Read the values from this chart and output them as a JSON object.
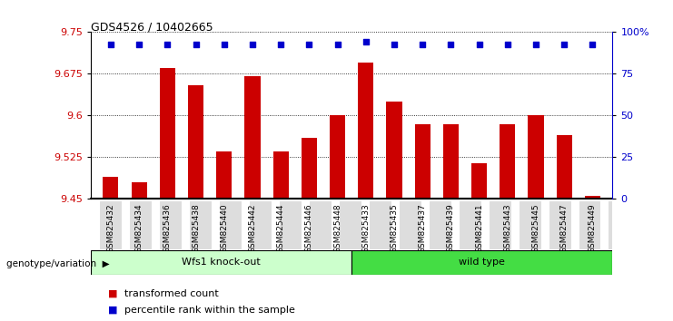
{
  "title": "GDS4526 / 10402665",
  "samples": [
    "GSM825432",
    "GSM825434",
    "GSM825436",
    "GSM825438",
    "GSM825440",
    "GSM825442",
    "GSM825444",
    "GSM825446",
    "GSM825448",
    "GSM825433",
    "GSM825435",
    "GSM825437",
    "GSM825439",
    "GSM825441",
    "GSM825443",
    "GSM825445",
    "GSM825447",
    "GSM825449"
  ],
  "red_values": [
    9.49,
    9.48,
    9.685,
    9.655,
    9.535,
    9.67,
    9.535,
    9.56,
    9.6,
    9.695,
    9.625,
    9.585,
    9.585,
    9.515,
    9.585,
    9.6,
    9.565,
    9.455
  ],
  "blue_values": [
    9.728,
    9.728,
    9.728,
    9.728,
    9.728,
    9.728,
    9.728,
    9.728,
    9.728,
    9.733,
    9.728,
    9.728,
    9.728,
    9.728,
    9.728,
    9.728,
    9.728,
    9.728
  ],
  "group1_label": "Wfs1 knock-out",
  "group2_label": "wild type",
  "group1_count": 9,
  "group2_count": 9,
  "group1_color": "#CCFFCC",
  "group2_color": "#44DD44",
  "bar_color": "#CC0000",
  "dot_color": "#0000CC",
  "ymin": 9.45,
  "ymax": 9.75,
  "yticks": [
    9.45,
    9.525,
    9.6,
    9.675,
    9.75
  ],
  "ytick_labels": [
    "9.45",
    "9.525",
    "9.6",
    "9.675",
    "9.75"
  ],
  "y2ticks": [
    0,
    25,
    50,
    75,
    100
  ],
  "y2tick_labels": [
    "0",
    "25",
    "50",
    "75",
    "100%"
  ],
  "legend_red": "transformed count",
  "legend_blue": "percentile rank within the sample",
  "genotype_label": "genotype/variation"
}
